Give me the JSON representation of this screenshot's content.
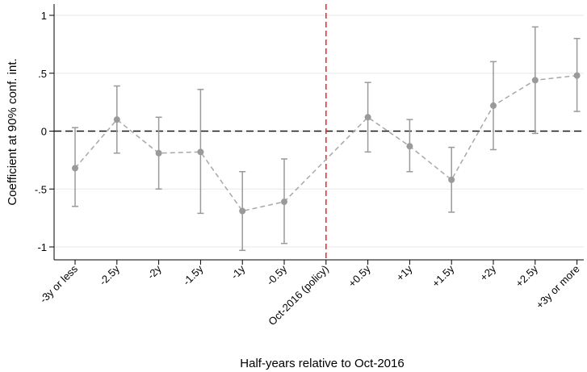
{
  "chart_data": {
    "type": "scatter",
    "xlabel": "Half-years relative to Oct-2016",
    "ylabel": "Coefficient at 90% conf. int.",
    "ylim": [
      -1.1,
      1.1
    ],
    "yticks": [
      1,
      0.5,
      0,
      -0.5,
      -1
    ],
    "ytick_labels": [
      "1",
      ".5",
      "0",
      "-.5",
      "-1"
    ],
    "categories": [
      "-3y or less",
      "-2.5y",
      "-2y",
      "-1.5y",
      "-1y",
      "-0.5y",
      "Oct-2016 (policy)",
      "+0.5y",
      "+1y",
      "+1.5y",
      "+2y",
      "+2.5y",
      "+3y or more"
    ],
    "points": [
      {
        "x": "-3y or less",
        "y": -0.32,
        "lo": -0.65,
        "hi": 0.03
      },
      {
        "x": "-2.5y",
        "y": 0.1,
        "lo": -0.19,
        "hi": 0.39
      },
      {
        "x": "-2y",
        "y": -0.19,
        "lo": -0.5,
        "hi": 0.12
      },
      {
        "x": "-1.5y",
        "y": -0.18,
        "lo": -0.71,
        "hi": 0.36
      },
      {
        "x": "-1y",
        "y": -0.69,
        "lo": -1.03,
        "hi": -0.35
      },
      {
        "x": "-0.5y",
        "y": -0.61,
        "lo": -0.97,
        "hi": -0.24
      },
      {
        "x": "+0.5y",
        "y": 0.12,
        "lo": -0.18,
        "hi": 0.42
      },
      {
        "x": "+1y",
        "y": -0.13,
        "lo": -0.35,
        "hi": 0.1
      },
      {
        "x": "+1.5y",
        "y": -0.42,
        "lo": -0.7,
        "hi": -0.14
      },
      {
        "x": "+2y",
        "y": 0.22,
        "lo": -0.16,
        "hi": 0.6
      },
      {
        "x": "+2.5y",
        "y": 0.44,
        "lo": -0.02,
        "hi": 0.9
      },
      {
        "x": "+3y or more",
        "y": 0.48,
        "lo": 0.17,
        "hi": 0.8
      }
    ],
    "policy_line_at": "Oct-2016 (policy)",
    "reference_line_y": 0,
    "grid": true,
    "colors": {
      "point": "#9a9a9a",
      "connector": "#a8a8a8",
      "error_bar": "#9a9a9a",
      "policy_line": "#e8232a",
      "zero_line": "#1a1a1a",
      "grid": "#ececec"
    }
  }
}
